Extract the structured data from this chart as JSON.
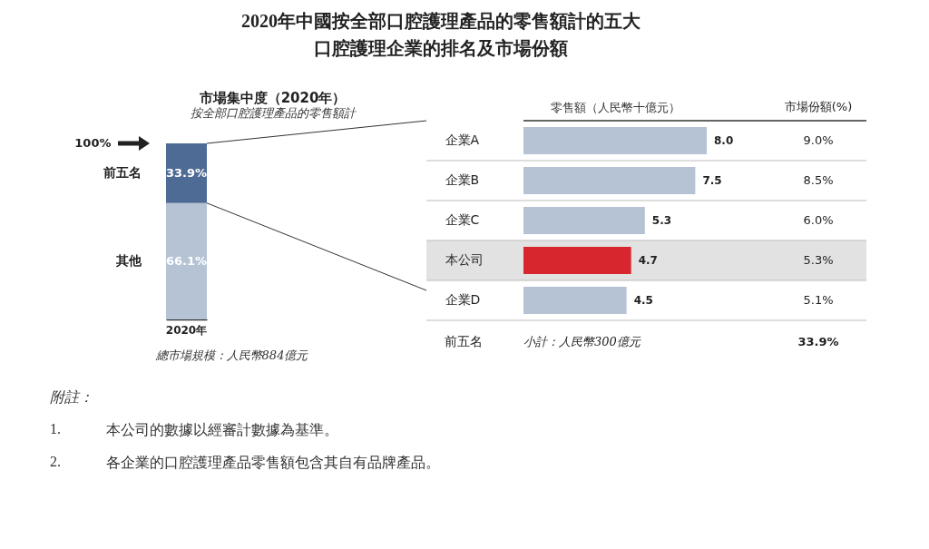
{
  "chart_data": [
    {
      "type": "other",
      "title": "2020年中國按全部口腔護理產品的零售額計的五大口腔護理企業的排名及市場份額",
      "annotations": [
        "附註：",
        "1.",
        "本公司的數據以經審計數據為基準。",
        "2.",
        "各企業的口腔護理產品零售額包含其自有品牌產品。"
      ]
    },
    {
      "type": "bar",
      "stacked": true,
      "title": "市場集中度（2020年）",
      "subtitle": "按全部口腔護理產品的零售額計",
      "categories": [
        "2020年"
      ],
      "ylim": [
        0,
        100
      ],
      "series": [
        {
          "name": "其他",
          "color": "#b5c3d5",
          "values": [
            66.1
          ],
          "value_labels": [
            "66.1%"
          ]
        },
        {
          "name": "前五名",
          "color": "#4e6b95",
          "values": [
            33.9
          ],
          "value_labels": [
            "33.9%"
          ]
        }
      ],
      "annotations": [
        "100%",
        "總市場規模：人民幣884億元"
      ]
    },
    {
      "type": "bar",
      "orientation": "horizontal",
      "xlabel": "零售額（人民幣十億元）",
      "grid": "y",
      "categories": [
        "企業A",
        "企業B",
        "企業C",
        "本公司",
        "企業D"
      ],
      "values": [
        8.0,
        7.5,
        5.3,
        4.7,
        4.5
      ],
      "value_labels": [
        "8.0",
        "7.5",
        "5.3",
        "4.7",
        "4.5"
      ],
      "colors": [
        "#b5c3d5",
        "#b5c3d5",
        "#b5c3d5",
        "#d7262e",
        "#b5c3d5"
      ],
      "bands": [
        {
          "axis": "y",
          "from": "本公司",
          "to": "本公司",
          "color": "#e2e2e2"
        }
      ],
      "annotations": [
        "市場份額(%)",
        "9.0%",
        "8.5%",
        "6.0%",
        "5.3%",
        "5.1%",
        "前五名",
        "小計：人民幣300億元",
        "33.9%"
      ]
    }
  ]
}
